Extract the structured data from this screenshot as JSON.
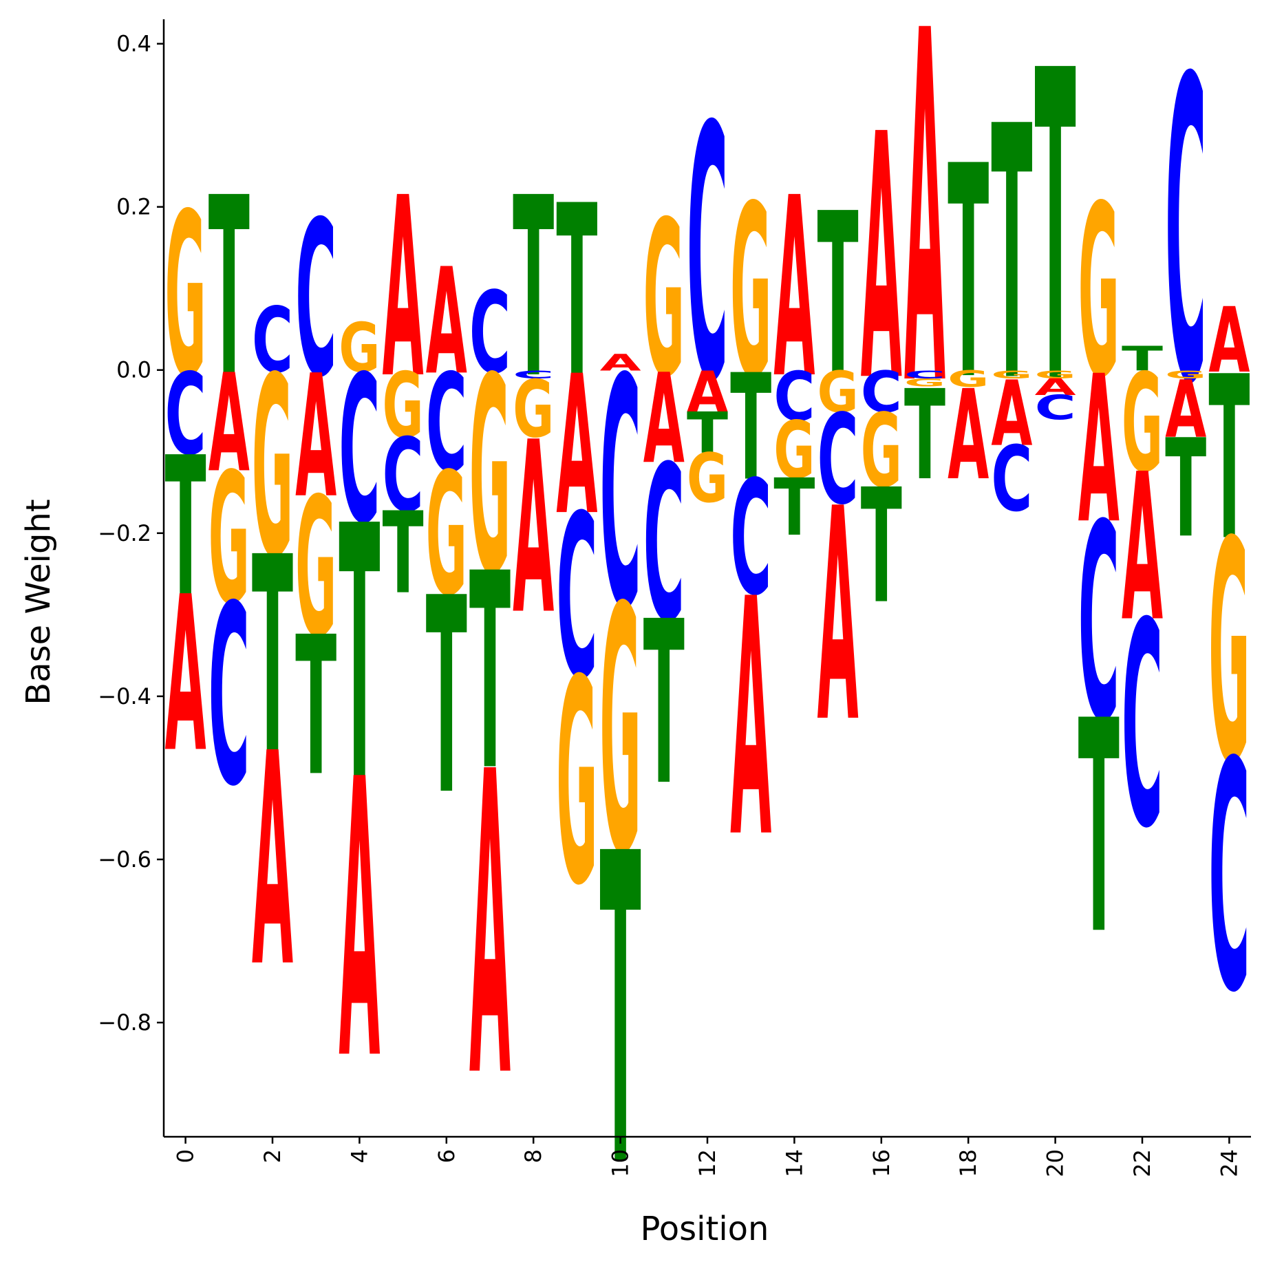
{
  "chart_data": {
    "type": "sequence-logo",
    "xlabel": "Position",
    "ylabel": "Base Weight",
    "xlim": [
      -0.5,
      24.5
    ],
    "ylim": [
      -0.94,
      0.43
    ],
    "x_ticks": [
      0,
      2,
      4,
      6,
      8,
      10,
      12,
      14,
      16,
      18,
      20,
      22,
      24
    ],
    "y_ticks": [
      -0.8,
      -0.6,
      -0.4,
      -0.2,
      0.0,
      0.2,
      0.4
    ],
    "y_tick_labels": [
      "−0.8",
      "−0.6",
      "−0.4",
      "−0.2",
      "0.0",
      "0.2",
      "0.4"
    ],
    "colors": {
      "A": "#ff0000",
      "C": "#0000ff",
      "G": "#ffa500",
      "T": "#008000"
    },
    "positions": [
      {
        "pos": 0,
        "A": -0.19,
        "C": -0.1,
        "G": 0.2,
        "T": -0.17
      },
      {
        "pos": 1,
        "A": -0.12,
        "C": -0.22,
        "G": -0.16,
        "T": 0.22
      },
      {
        "pos": 2,
        "A": -0.26,
        "C": 0.08,
        "G": -0.22,
        "T": -0.24
      },
      {
        "pos": 3,
        "A": -0.15,
        "C": 0.19,
        "G": -0.17,
        "T": -0.17
      },
      {
        "pos": 4,
        "A": -0.34,
        "C": -0.18,
        "G": 0.06,
        "T": -0.31
      },
      {
        "pos": 5,
        "A": 0.22,
        "C": -0.09,
        "G": -0.08,
        "T": -0.1
      },
      {
        "pos": 6,
        "A": 0.13,
        "C": -0.12,
        "G": -0.15,
        "T": -0.24
      },
      {
        "pos": 7,
        "A": -0.37,
        "C": 0.1,
        "G": -0.24,
        "T": -0.24
      },
      {
        "pos": 8,
        "A": -0.21,
        "C": -0.01,
        "G": -0.07,
        "T": 0.22
      },
      {
        "pos": 9,
        "A": -0.17,
        "C": -0.2,
        "G": -0.25,
        "T": 0.21
      },
      {
        "pos": 10,
        "A": 0.02,
        "C": -0.28,
        "G": -0.3,
        "T": -0.38
      },
      {
        "pos": 11,
        "A": -0.11,
        "C": -0.19,
        "G": 0.19,
        "T": -0.2
      },
      {
        "pos": 12,
        "A": -0.05,
        "C": 0.31,
        "G": -0.06,
        "T": -0.05
      },
      {
        "pos": 13,
        "A": -0.29,
        "C": -0.14,
        "G": 0.21,
        "T": -0.13
      },
      {
        "pos": 14,
        "A": 0.22,
        "C": -0.06,
        "G": -0.07,
        "T": -0.07
      },
      {
        "pos": 15,
        "A": -0.26,
        "C": -0.11,
        "G": -0.05,
        "T": 0.2
      },
      {
        "pos": 16,
        "A": 0.3,
        "C": -0.05,
        "G": -0.09,
        "T": -0.14
      },
      {
        "pos": 17,
        "A": 0.43,
        "C": -0.01,
        "G": -0.01,
        "T": -0.11
      },
      {
        "pos": 18,
        "A": -0.11,
        "C": 0.0,
        "G": -0.02,
        "T": 0.26
      },
      {
        "pos": 19,
        "A": -0.08,
        "C": -0.08,
        "G": -0.01,
        "T": 0.31
      },
      {
        "pos": 20,
        "A": -0.02,
        "C": -0.03,
        "G": -0.01,
        "T": 0.38
      },
      {
        "pos": 21,
        "A": -0.18,
        "C": -0.24,
        "G": 0.21,
        "T": -0.26
      },
      {
        "pos": 22,
        "A": -0.18,
        "C": -0.25,
        "G": -0.12,
        "T": 0.03
      },
      {
        "pos": 23,
        "A": -0.07,
        "C": 0.37,
        "G": -0.01,
        "T": -0.12
      },
      {
        "pos": 24,
        "A": 0.08,
        "C": -0.28,
        "G": -0.27,
        "T": -0.2
      }
    ]
  }
}
